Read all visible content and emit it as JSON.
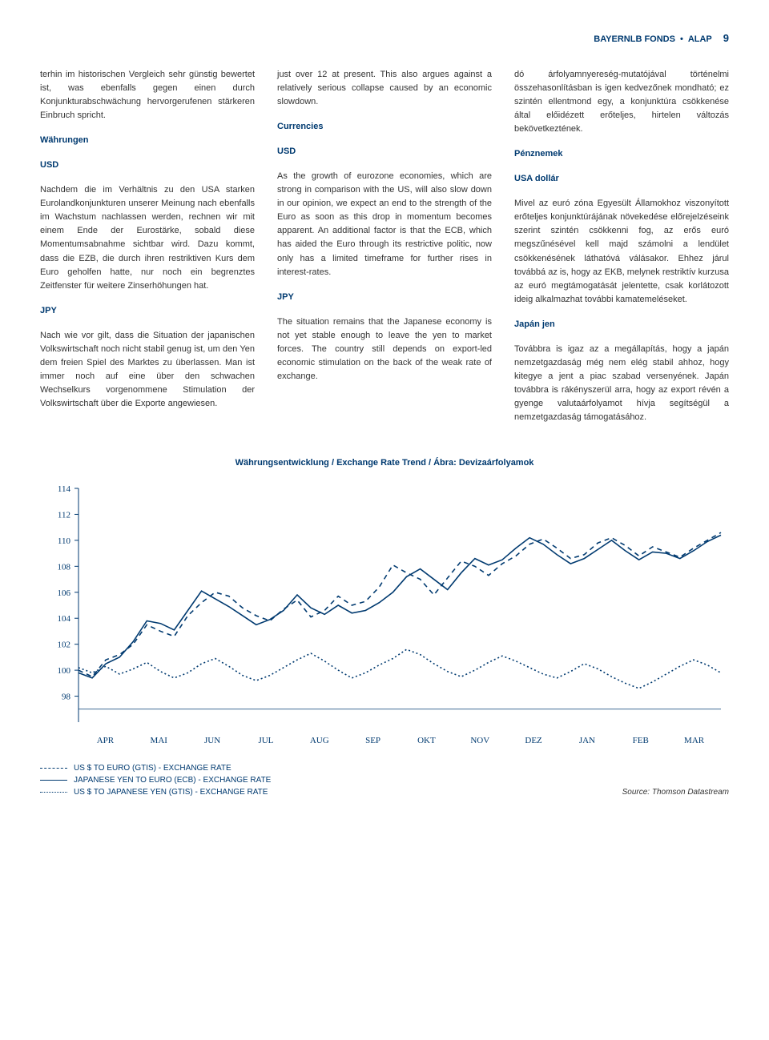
{
  "header": {
    "brand": "BAYERNLB FONDS",
    "dot": "•",
    "section": "ALAP",
    "page": "9"
  },
  "col1_p1": "terhin im historischen Vergleich sehr günstig bewertet ist, was ebenfalls gegen einen durch Konjunkturabschwächung hervorgerufenen stärkeren Einbruch spricht.",
  "col2_p1": "just over 12 at present. This also argues against a relatively serious collapse caused by an economic slowdown.",
  "col3_p1": "dó árfolyamnyereség-mutatójával történelmi összehasonlításban is igen kedvezőnek mondható; ez szintén ellentmond egy, a konjunktúra csökkenése által előidézett erőteljes, hirtelen változás bekövetkeztének.",
  "col1_h1": "Währungen",
  "col2_h1": "Currencies",
  "col3_h1": "Pénznemek",
  "col1_h2": "USD",
  "col2_h2": "USD",
  "col3_h2": "USA dollár",
  "col1_p2": "Nachdem die im Verhältnis zu den USA starken Eurolandkonjunkturen unserer Meinung nach ebenfalls im Wachstum nachlassen werden, rechnen wir mit einem Ende der Eurostärke, sobald diese Momentumsabnahme sichtbar wird. Dazu kommt, dass die EZB, die durch ihren restriktiven Kurs dem Euro geholfen hatte, nur noch ein begrenztes Zeitfenster für weitere Zinserhöhungen hat.",
  "col2_p2": "As the growth of eurozone economies, which are strong in comparison with the US, will also slow down in our opinion, we expect an end to the strength of the Euro as soon as this drop in momentum becomes apparent. An additional factor is that the ECB, which has aided the Euro through its restrictive politic, now only has a limited timeframe for further rises in interest-rates.",
  "col3_p2": "Mivel az euró zóna Egyesült Államokhoz viszonyított erőteljes konjunktúrájának növekedése előrejelzéseink szerint szintén csökkenni fog, az erős euró megszűnésével kell majd számolni a lendület csökkenésének láthatóvá válásakor. Ehhez járul továbbá az is, hogy az EKB, melynek restriktív kurzusa az euró megtámogatását jelentette, csak korlátozott ideig alkalmazhat további kamatemeléseket.",
  "col1_h3": "JPY",
  "col2_h3": "JPY",
  "col3_h3": "Japán jen",
  "col1_p3": "Nach wie vor gilt, dass die Situation der japanischen Volkswirtschaft noch nicht stabil genug ist, um den Yen dem freien Spiel des Marktes zu überlassen. Man ist immer noch auf eine über den schwachen Wechselkurs vorgenommene Stimulation der Volkswirtschaft über die Exporte angewiesen.",
  "col2_p3": "The situation remains that the Japanese economy is not yet stable enough to leave the yen to market forces. The country still depends on export-led economic stimulation on the back of the weak rate of exchange.",
  "col3_p3": "Továbbra is igaz az a megállapítás, hogy a japán nemzetgazdaság még nem elég stabil ahhoz, hogy kitegye a jent a piac szabad versenyének. Japán továbbra is rákényszerül arra, hogy az export révén a gyenge valutaárfolyamot hívja segítségül a nemzetgazdaság támogatásához.",
  "chart": {
    "title": "Währungsentwicklung / Exchange Rate Trend / Ábra: Devizaárfolyamok",
    "ylim": [
      96,
      114
    ],
    "ytick_step": 2,
    "xlabels": [
      "APR",
      "MAI",
      "JUN",
      "JUL",
      "AUG",
      "SEP",
      "OKT",
      "NOV",
      "DEZ",
      "JAN",
      "FEB",
      "MAR"
    ],
    "color": "#003a70",
    "bg": "#ffffff",
    "axis_fontsize": 11,
    "series": [
      {
        "name": "US $ TO EURO (GTIS) - EXCHANGE RATE",
        "dash": "6,5",
        "width": 1.6,
        "values": [
          100.0,
          99.5,
          100.8,
          101.2,
          102.0,
          103.5,
          103.0,
          102.6,
          104.2,
          105.2,
          106.0,
          105.7,
          104.8,
          104.2,
          103.8,
          104.7,
          105.4,
          104.1,
          104.6,
          105.7,
          105.0,
          105.3,
          106.4,
          108.1,
          107.5,
          107.0,
          105.8,
          107.1,
          108.4,
          108.0,
          107.3,
          108.2,
          108.8,
          109.7,
          110.1,
          109.4,
          108.6,
          108.9,
          109.8,
          110.2,
          109.6,
          108.8,
          109.5,
          109.1,
          108.7,
          109.4,
          110.0,
          110.6
        ]
      },
      {
        "name": "JAPANESE YEN TO EURO (ECB) - EXCHANGE RATE",
        "dash": "",
        "width": 1.6,
        "values": [
          99.8,
          99.4,
          100.5,
          101.0,
          102.2,
          103.8,
          103.6,
          103.1,
          104.6,
          106.1,
          105.5,
          104.9,
          104.2,
          103.5,
          103.9,
          104.6,
          105.8,
          104.8,
          104.3,
          105.0,
          104.4,
          104.6,
          105.2,
          106.0,
          107.2,
          107.8,
          107.0,
          106.2,
          107.5,
          108.6,
          108.1,
          108.5,
          109.4,
          110.2,
          109.7,
          108.9,
          108.2,
          108.6,
          109.3,
          110.0,
          109.2,
          108.5,
          109.1,
          109.0,
          108.6,
          109.2,
          109.9,
          110.4
        ]
      },
      {
        "name": "US $ TO JAPANESE YEN (GTIS) - EXCHANGE RATE",
        "dash": "2,3",
        "width": 1.6,
        "values": [
          100.2,
          99.8,
          100.3,
          99.7,
          100.1,
          100.6,
          99.9,
          99.4,
          99.8,
          100.5,
          100.9,
          100.3,
          99.6,
          99.2,
          99.6,
          100.2,
          100.8,
          101.3,
          100.7,
          100.0,
          99.4,
          99.8,
          100.4,
          100.9,
          101.6,
          101.2,
          100.5,
          99.9,
          99.5,
          100.0,
          100.6,
          101.1,
          100.7,
          100.2,
          99.7,
          99.4,
          99.9,
          100.5,
          100.1,
          99.5,
          99.0,
          98.6,
          99.1,
          99.7,
          100.3,
          100.8,
          100.4,
          99.8
        ]
      }
    ],
    "legend": [
      "US $ TO EURO (GTIS) - EXCHANGE RATE",
      "JAPANESE YEN TO EURO (ECB) - EXCHANGE RATE",
      "US $ TO JAPANESE YEN (GTIS) - EXCHANGE RATE"
    ],
    "source": "Source: Thomson Datastream"
  }
}
